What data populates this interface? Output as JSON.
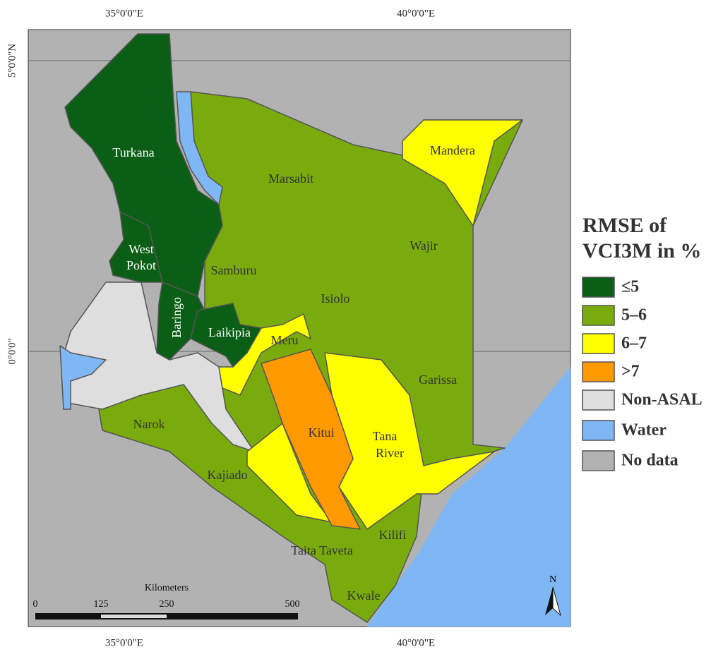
{
  "coordinates": {
    "top": [
      "35°0'0\"E",
      "40°0'0\"E"
    ],
    "bottom": [
      "35°0'0\"E",
      "40°0'0\"E"
    ],
    "left": [
      "5°0'0\"N",
      "0°0'0\""
    ]
  },
  "regions": [
    "Turkana",
    [
      "West",
      "Pokot"
    ],
    "Baringo",
    "Laikipia",
    "Marsabit",
    "Mandera",
    "Wajir",
    "Samburu",
    "Isiolo",
    "Meru",
    "Garissa",
    "Kitui",
    [
      "Tana",
      "River"
    ],
    "Narok",
    "Kajiado",
    "Taita Taveta",
    "Kilifi",
    "Kwale"
  ],
  "legend": {
    "title": [
      "RMSE of",
      "VCI3M in %"
    ],
    "items": [
      {
        "label": "≤5",
        "color": "#0b5e15"
      },
      {
        "label": "5–6",
        "color": "#7aab0d"
      },
      {
        "label": "6–7",
        "color": "#ffff00"
      },
      {
        "label": ">7",
        "color": "#ff9900"
      },
      {
        "label": "Non-ASAL",
        "color": "#dedede"
      },
      {
        "label": "Water",
        "color": "#7fb7f5"
      },
      {
        "label": "No data",
        "color": "#b2b2b2"
      }
    ]
  },
  "scale_bar": {
    "title": "Kilometers",
    "labels": [
      "0",
      "125",
      "250",
      "500"
    ]
  },
  "north_label": "N"
}
